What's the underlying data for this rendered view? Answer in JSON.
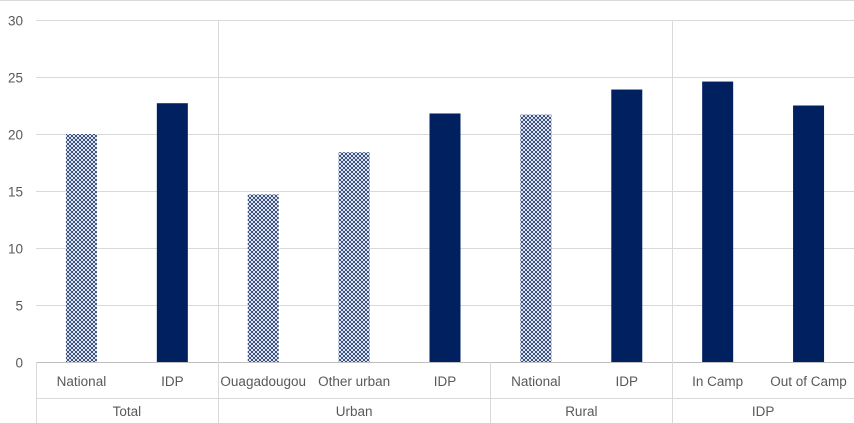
{
  "chart_data": {
    "type": "bar",
    "ylim": [
      0,
      30
    ],
    "yticks": [
      0,
      5,
      10,
      15,
      20,
      25,
      30
    ],
    "grid": true,
    "legend": false,
    "colors": {
      "bar": "#002060",
      "hatch_background": "#ffffff",
      "gridline": "#d9d9d9",
      "axis_line": "#bfbfbf",
      "text": "#595959"
    },
    "groups": [
      {
        "label": "Total",
        "bars": [
          {
            "label": "National",
            "value": 20.0,
            "hatched": true
          },
          {
            "label": "IDP",
            "value": 22.7,
            "hatched": false
          }
        ]
      },
      {
        "label": "Urban",
        "bars": [
          {
            "label": "Ouagadougou",
            "value": 14.7,
            "hatched": true
          },
          {
            "label": "Other urban",
            "value": 18.4,
            "hatched": true
          },
          {
            "label": "IDP",
            "value": 21.8,
            "hatched": false
          }
        ]
      },
      {
        "label": "Rural",
        "bars": [
          {
            "label": "National",
            "value": 21.7,
            "hatched": true
          },
          {
            "label": "IDP",
            "value": 23.9,
            "hatched": false
          }
        ]
      },
      {
        "label": "IDP",
        "bars": [
          {
            "label": "In Camp",
            "value": 24.6,
            "hatched": false
          },
          {
            "label": "Out of Camp",
            "value": 22.5,
            "hatched": false
          }
        ]
      }
    ]
  }
}
